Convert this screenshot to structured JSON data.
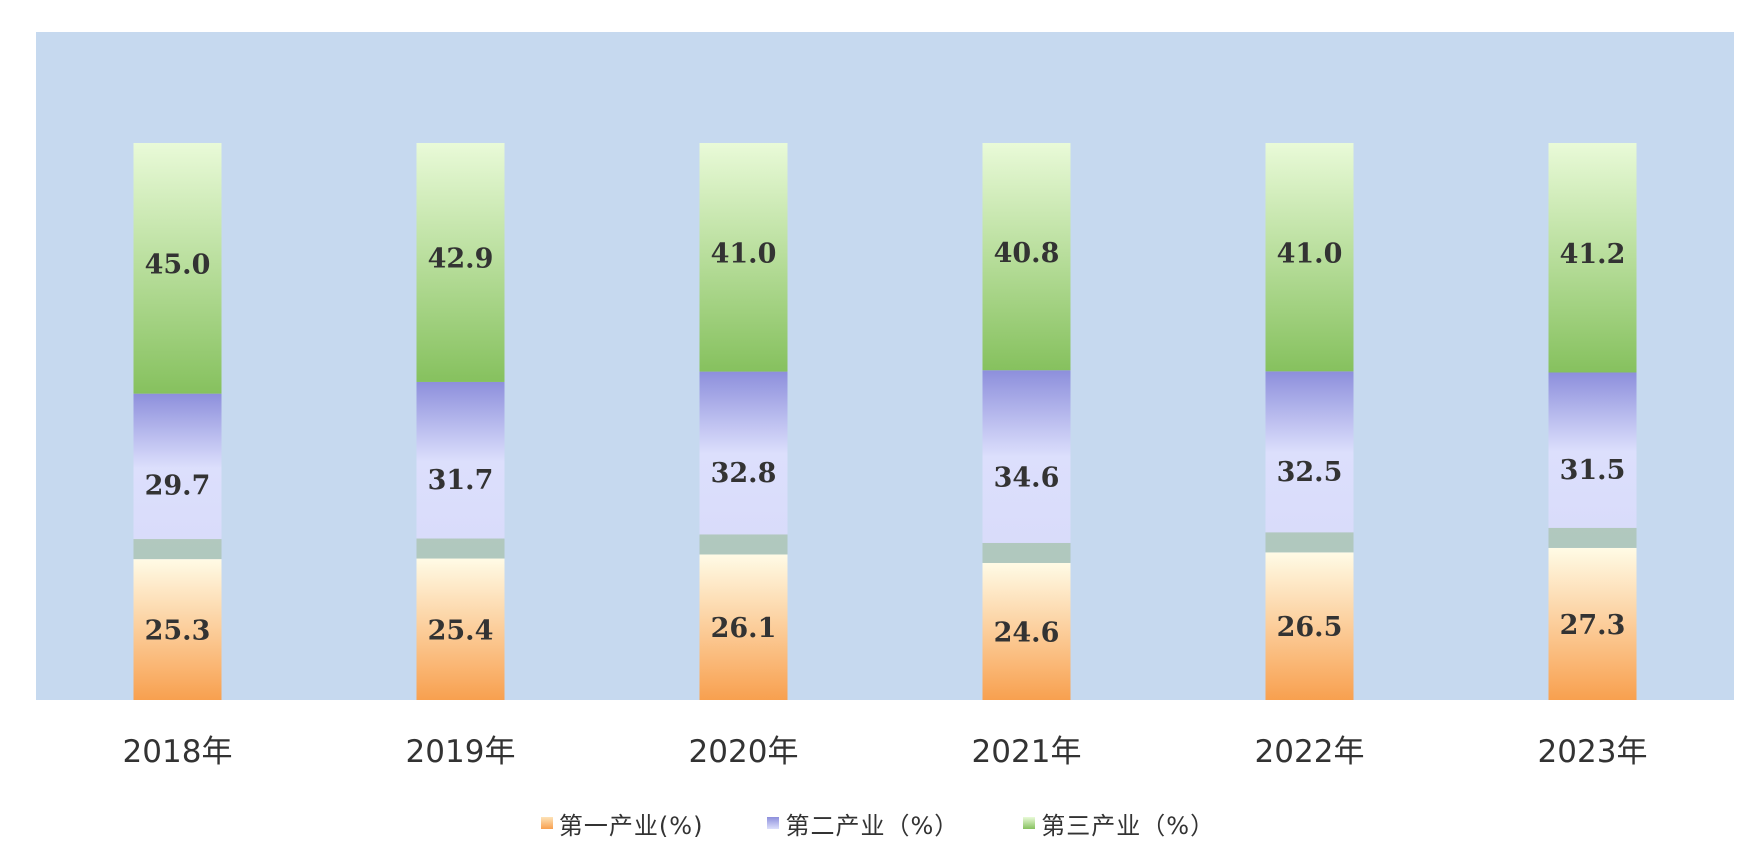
{
  "chart_data": {
    "type": "bar",
    "stacked": true,
    "percent_stacked": true,
    "categories": [
      "2018年",
      "2019年",
      "2020年",
      "2021年",
      "2022年",
      "2023年"
    ],
    "series": [
      {
        "name": "第一产业(%)",
        "values": [
          25.3,
          25.4,
          26.1,
          24.6,
          26.5,
          27.3
        ],
        "color": "#f9a25a"
      },
      {
        "name": "第二产业（%）",
        "values": [
          29.7,
          31.7,
          32.8,
          34.6,
          32.5,
          31.5
        ],
        "color": "#8e8fe0"
      },
      {
        "name": "第三产业（%）",
        "values": [
          45.0,
          42.9,
          41.0,
          40.8,
          41.0,
          41.2
        ],
        "color": "#8fc46a"
      }
    ],
    "ylim": [
      0,
      100
    ],
    "grid": false,
    "legend_position": "bottom",
    "plot_background": "#c6d9ef"
  }
}
